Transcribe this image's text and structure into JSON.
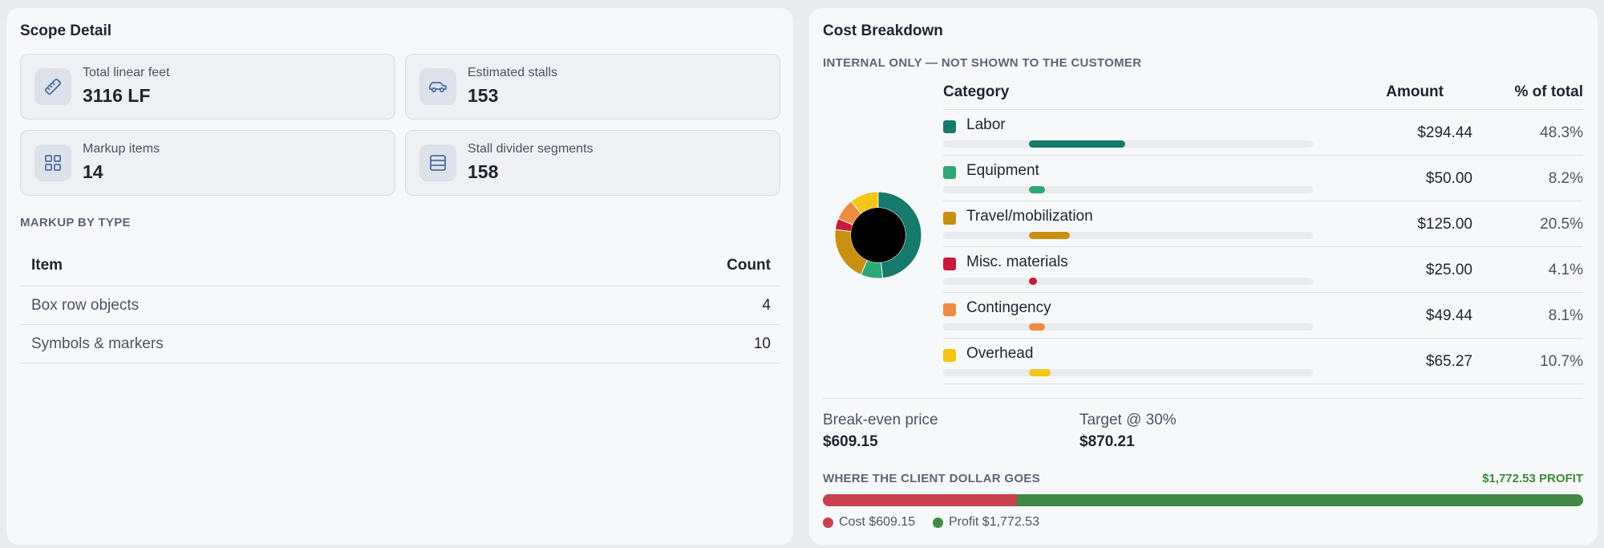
{
  "scope_detail": {
    "title": "Scope Detail",
    "stats": [
      {
        "label": "Total linear feet",
        "value": "3116 LF",
        "icon": "ruler-icon"
      },
      {
        "label": "Estimated stalls",
        "value": "153",
        "icon": "car-icon"
      },
      {
        "label": "Markup items",
        "value": "14",
        "icon": "grid-icon"
      },
      {
        "label": "Stall divider segments",
        "value": "158",
        "icon": "rows-icon"
      }
    ],
    "markup_heading": "MARKUP BY TYPE",
    "markup_table": {
      "headers": {
        "item": "Item",
        "count": "Count"
      },
      "rows": [
        {
          "item": "Box row objects",
          "count": "4"
        },
        {
          "item": "Symbols & markers",
          "count": "10"
        }
      ]
    }
  },
  "cost_breakdown": {
    "title": "Cost Breakdown",
    "internal_note": "INTERNAL ONLY — NOT SHOWN TO THE CUSTOMER",
    "table_headers": {
      "category": "Category",
      "amount": "Amount",
      "percent": "% of total"
    },
    "categories": [
      {
        "name": "Labor",
        "amount": "$294.44",
        "percent": "48.3%",
        "share": 48.3,
        "color": "#167a6c"
      },
      {
        "name": "Equipment",
        "amount": "$50.00",
        "percent": "8.2%",
        "share": 8.2,
        "color": "#2da876"
      },
      {
        "name": "Travel/mobilization",
        "amount": "$125.00",
        "percent": "20.5%",
        "share": 20.5,
        "color": "#c98f10"
      },
      {
        "name": "Misc. materials",
        "amount": "$25.00",
        "percent": "4.1%",
        "share": 4.1,
        "color": "#c8193e"
      },
      {
        "name": "Contingency",
        "amount": "$49.44",
        "percent": "8.1%",
        "share": 8.1,
        "color": "#f08a40"
      },
      {
        "name": "Overhead",
        "amount": "$65.27",
        "percent": "10.7%",
        "share": 10.7,
        "color": "#f5c518"
      }
    ],
    "break_even": {
      "label": "Break-even price",
      "value": "$609.15"
    },
    "target": {
      "label": "Target @ 30%",
      "value": "$870.21"
    },
    "client_dollar": {
      "heading": "WHERE THE CLIENT DOLLAR GOES",
      "profit_total": "$1,772.53 PROFIT",
      "cost_amount": 609.15,
      "profit_amount": 1772.53,
      "cost_color": "#c9404e",
      "profit_color": "#408a44",
      "legend_cost": "Cost $609.15",
      "legend_profit": "Profit $1,772.53"
    }
  }
}
